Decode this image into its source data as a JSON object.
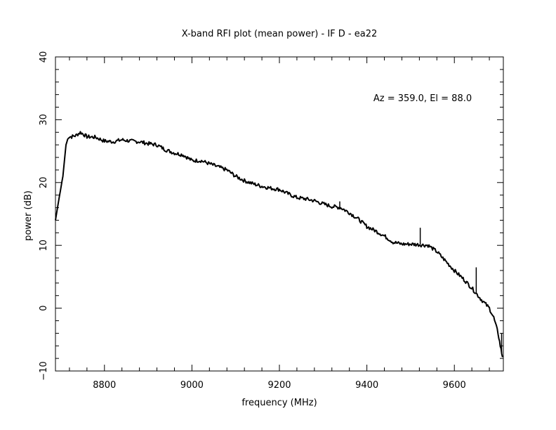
{
  "chart_data": {
    "type": "line",
    "title": "X-band RFI plot (mean power) - IF D - ea22",
    "xlabel": "frequency (MHz)",
    "ylabel": "power (dB)",
    "annotation": "Az = 359.0, El = 88.0",
    "xlim": [
      8688,
      9712
    ],
    "ylim": [
      -10,
      40
    ],
    "xticks": [
      8800,
      9000,
      9200,
      9400,
      9600
    ],
    "xtick_labels": [
      "8800",
      "9000",
      "9200",
      "9400",
      "9600"
    ],
    "yticks": [
      -10,
      0,
      10,
      20,
      30,
      40
    ],
    "ytick_labels": [
      "−10",
      "0",
      "10",
      "20",
      "30",
      "40"
    ],
    "grid": false,
    "line_color": "#000000",
    "series": [
      {
        "x": [
          8688,
          8695,
          8705,
          8712,
          8718,
          8725,
          8735,
          8745,
          8760,
          8780,
          8800,
          8820,
          8840,
          8860,
          8880,
          8900,
          8920,
          8940,
          8960,
          8980,
          9000,
          9020,
          9040,
          9060,
          9080,
          9100,
          9120,
          9140,
          9160,
          9180,
          9200,
          9220,
          9240,
          9260,
          9280,
          9300,
          9320,
          9340,
          9360,
          9380,
          9400,
          9420,
          9440,
          9460,
          9480,
          9500,
          9520,
          9540,
          9560,
          9580,
          9600,
          9620,
          9640,
          9660,
          9680,
          9690,
          9700,
          9705,
          9710
        ],
        "y": [
          14,
          17,
          21,
          26,
          27.3,
          27.3,
          27.5,
          28,
          27.3,
          27.2,
          26.6,
          26.5,
          26.8,
          26.6,
          26.5,
          26.2,
          26.0,
          25.2,
          24.7,
          24.4,
          23.5,
          23.5,
          23.0,
          22.5,
          22.0,
          21.0,
          20.3,
          19.8,
          19.4,
          19.1,
          18.9,
          18.2,
          17.6,
          17.4,
          17.1,
          16.6,
          16.2,
          16.0,
          15.2,
          14.2,
          13.0,
          12.3,
          11.5,
          10.5,
          10.2,
          10.2,
          10.1,
          10.0,
          9.0,
          7.5,
          6.0,
          4.7,
          3.2,
          1.5,
          0.0,
          -1.5,
          -4.0,
          -6.0,
          -7.8
        ]
      }
    ],
    "spikes": [
      {
        "x": 9338,
        "y": 17.0
      },
      {
        "x": 9522,
        "y": 12.8
      },
      {
        "x": 9650,
        "y": 6.5
      },
      {
        "x": 9708,
        "y": -4.0
      }
    ]
  }
}
